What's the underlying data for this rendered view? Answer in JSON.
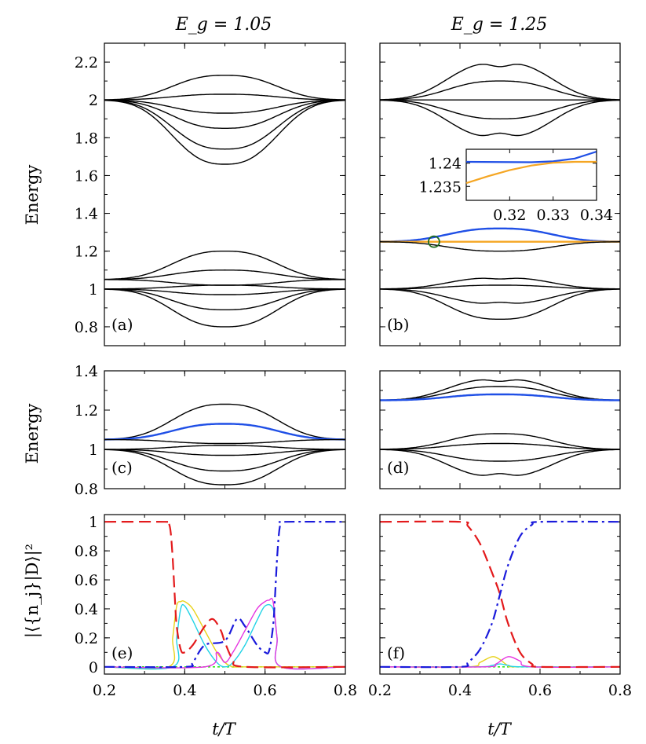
{
  "figure": {
    "col_titles": [
      "E_g = 1.05",
      "E_g = 1.25"
    ],
    "ylabel_energy": "Energy",
    "ylabel_prob": "|⟨{n_j}|D⟩|²",
    "xlabel": "t/T"
  },
  "colors": {
    "blue": "#1f4fe6",
    "orange": "#f5a623",
    "red": "#e31a1c",
    "navy": "#1a1adb",
    "yellow": "#e8d21a",
    "cyan": "#22d3e6",
    "magenta": "#e633e0",
    "green": "#2ee61a",
    "dark_green": "#1e6b1e"
  },
  "chart_data": [
    {
      "id": "a",
      "type": "line",
      "panel_label": "(a)",
      "xlim": [
        0.2,
        0.8
      ],
      "ylim": [
        0.7,
        2.3
      ],
      "xticks": [
        0.2,
        0.4,
        0.6,
        0.8
      ],
      "yticks": [
        0.8,
        1.0,
        1.2,
        1.4,
        1.6,
        1.8,
        2.0,
        2.2
      ],
      "ytick_labels": [
        "0.8",
        "1",
        "1.2",
        "1.4",
        "1.6",
        "1.8",
        "2",
        "2.2"
      ],
      "series": [
        {
          "start": 2,
          "peak": 2.13,
          "color": "black"
        },
        {
          "start": 2,
          "peak": 2.03,
          "color": "black"
        },
        {
          "start": 2,
          "peak": 1.93,
          "color": "black"
        },
        {
          "start": 2,
          "peak": 1.85,
          "color": "black"
        },
        {
          "start": 2,
          "peak": 1.74,
          "color": "black"
        },
        {
          "start": 2,
          "peak": 1.66,
          "color": "black"
        },
        {
          "start": 1.05,
          "peak": 1.2,
          "color": "black"
        },
        {
          "start": 1.05,
          "peak": 1.1,
          "color": "black"
        },
        {
          "start": 1.05,
          "peak": 1.02,
          "color": "black"
        },
        {
          "start": 1,
          "peak": 1.02,
          "color": "black"
        },
        {
          "start": 1,
          "peak": 0.97,
          "color": "black"
        },
        {
          "start": 1,
          "peak": 0.89,
          "color": "black"
        },
        {
          "start": 1,
          "peak": 0.8,
          "color": "black"
        }
      ]
    },
    {
      "id": "b",
      "type": "line",
      "panel_label": "(b)",
      "xlim": [
        0.2,
        0.8
      ],
      "ylim": [
        0.7,
        2.3
      ],
      "xticks": [
        0.2,
        0.4,
        0.6,
        0.8
      ],
      "yticks": [
        0.8,
        1.0,
        1.2,
        1.4,
        1.6,
        1.8,
        2.0,
        2.2
      ],
      "series": [
        {
          "start": 2,
          "peak": 2.2,
          "color": "black"
        },
        {
          "start": 2,
          "peak": 2.1,
          "color": "black"
        },
        {
          "start": 2,
          "peak": 2.0,
          "color": "black"
        },
        {
          "start": 2,
          "peak": 1.9,
          "color": "black"
        },
        {
          "start": 2,
          "peak": 1.8,
          "color": "black"
        },
        {
          "start": 1.25,
          "peak": 1.32,
          "color": "blue"
        },
        {
          "start": 1.25,
          "peak": 1.25,
          "color": "orange"
        },
        {
          "start": 1.25,
          "peak": 1.2,
          "color": "black"
        },
        {
          "start": 1,
          "peak": 1.06,
          "color": "black"
        },
        {
          "start": 1,
          "peak": 1.02,
          "color": "black"
        },
        {
          "start": 1,
          "peak": 0.92,
          "color": "black"
        },
        {
          "start": 1,
          "peak": 0.84,
          "color": "black"
        }
      ],
      "inset": {
        "xlim": [
          0.31,
          0.34
        ],
        "ylim": [
          1.232,
          1.243
        ],
        "xticks": [
          0.32,
          0.33,
          0.34
        ],
        "xtick_labels": [
          "0.32",
          "0.33",
          "0.34"
        ],
        "yticks": [
          1.235,
          1.24
        ],
        "ytick_labels": [
          "1.235",
          "1.24"
        ],
        "blue": {
          "x": [
            0.31,
            0.325,
            0.33,
            0.335,
            0.34
          ],
          "y": [
            1.2403,
            1.2402,
            1.2404,
            1.241,
            1.2425
          ]
        },
        "orange": {
          "x": [
            0.31,
            0.315,
            0.32,
            0.325,
            0.33,
            0.335,
            0.34
          ],
          "y": [
            1.2357,
            1.2372,
            1.2385,
            1.2395,
            1.2401,
            1.2403,
            1.2403
          ]
        }
      },
      "marker": {
        "x": 0.335,
        "y": 1.25
      }
    },
    {
      "id": "c",
      "type": "line",
      "panel_label": "(c)",
      "xlim": [
        0.2,
        0.8
      ],
      "ylim": [
        0.8,
        1.4
      ],
      "yticks": [
        0.8,
        1.0,
        1.2,
        1.4
      ],
      "ytick_labels": [
        "0.8",
        "1",
        "1.2",
        "1.4"
      ],
      "series": [
        {
          "start": 1.05,
          "peak": 1.23,
          "color": "black"
        },
        {
          "start": 1.05,
          "peak": 1.13,
          "color": "blue"
        },
        {
          "start": 1.05,
          "peak": 1.03,
          "color": "black"
        },
        {
          "start": 1,
          "peak": 1.02,
          "color": "black"
        },
        {
          "start": 1,
          "peak": 0.97,
          "color": "black"
        },
        {
          "start": 1,
          "peak": 0.89,
          "color": "black"
        },
        {
          "start": 1,
          "peak": 0.82,
          "color": "black"
        }
      ]
    },
    {
      "id": "d",
      "type": "line",
      "panel_label": "(d)",
      "xlim": [
        0.2,
        0.8
      ],
      "ylim": [
        0.8,
        1.4
      ],
      "series": [
        {
          "start": 1.25,
          "peak": 1.36,
          "color": "black"
        },
        {
          "start": 1.25,
          "peak": 1.32,
          "color": "black"
        },
        {
          "start": 1.25,
          "peak": 1.28,
          "color": "blue"
        },
        {
          "start": 1,
          "peak": 1.08,
          "color": "black"
        },
        {
          "start": 1,
          "peak": 1.03,
          "color": "black"
        },
        {
          "start": 1,
          "peak": 0.94,
          "color": "black"
        },
        {
          "start": 1,
          "peak": 0.86,
          "color": "black"
        }
      ]
    },
    {
      "id": "e",
      "type": "line",
      "panel_label": "(e)",
      "xlim": [
        0.2,
        0.8
      ],
      "ylim": [
        -0.05,
        1.05
      ],
      "xticks": [
        0.2,
        0.4,
        0.6,
        0.8
      ],
      "xtick_labels": [
        "0.2",
        "0.4",
        "0.6",
        "0.8"
      ],
      "yticks": [
        0,
        0.2,
        0.4,
        0.6,
        0.8,
        1
      ],
      "ytick_labels": [
        "0",
        "0.2",
        "0.4",
        "0.6",
        "0.8",
        "1"
      ],
      "series": [
        {
          "name": "red",
          "x": [
            0.2,
            0.35,
            0.36,
            0.365,
            0.37,
            0.375,
            0.38,
            0.39,
            0.4,
            0.42,
            0.45,
            0.47,
            0.49,
            0.5,
            0.52,
            0.55,
            0.8
          ],
          "y": [
            1,
            1,
            0.99,
            0.93,
            0.75,
            0.5,
            0.28,
            0.12,
            0.1,
            0.15,
            0.28,
            0.33,
            0.25,
            0.17,
            0.05,
            0,
            0
          ]
        },
        {
          "name": "navy",
          "x": [
            0.2,
            0.4,
            0.42,
            0.45,
            0.5,
            0.53,
            0.55,
            0.58,
            0.6,
            0.61,
            0.62,
            0.625,
            0.63,
            0.635,
            0.64,
            0.65,
            0.8
          ],
          "y": [
            0,
            0,
            0.03,
            0.15,
            0.18,
            0.33,
            0.28,
            0.15,
            0.1,
            0.11,
            0.28,
            0.5,
            0.75,
            0.93,
            0.99,
            1,
            1
          ]
        },
        {
          "name": "yellow",
          "x": [
            0.2,
            0.36,
            0.37,
            0.38,
            0.39,
            0.4,
            0.42,
            0.45,
            0.48,
            0.5,
            0.52,
            0.55,
            0.8
          ],
          "y": [
            0,
            0,
            0.2,
            0.42,
            0.45,
            0.45,
            0.4,
            0.25,
            0.1,
            0.03,
            0,
            0,
            0
          ]
        },
        {
          "name": "cyan",
          "x": [
            0.2,
            0.37,
            0.38,
            0.39,
            0.4,
            0.42,
            0.45,
            0.48,
            0.5,
            0.52,
            0.55,
            0.58,
            0.6,
            0.62,
            0.63,
            0.64,
            0.8
          ],
          "y": [
            0,
            0,
            0.2,
            0.4,
            0.42,
            0.32,
            0.15,
            0.03,
            0,
            0.03,
            0.15,
            0.32,
            0.42,
            0.4,
            0.2,
            0,
            0
          ]
        },
        {
          "name": "magenta",
          "x": [
            0.2,
            0.45,
            0.48,
            0.5,
            0.52,
            0.55,
            0.58,
            0.6,
            0.61,
            0.62,
            0.63,
            0.64,
            0.8
          ],
          "y": [
            0,
            0,
            0.1,
            0.03,
            0.1,
            0.25,
            0.4,
            0.45,
            0.46,
            0.45,
            0.2,
            0,
            0
          ]
        },
        {
          "name": "green",
          "x": [
            0.2,
            0.8
          ],
          "y": [
            0,
            0
          ]
        }
      ]
    },
    {
      "id": "f",
      "type": "line",
      "panel_label": "(f)",
      "xlim": [
        0.2,
        0.8
      ],
      "ylim": [
        -0.05,
        1.05
      ],
      "xticks": [
        0.2,
        0.4,
        0.6,
        0.8
      ],
      "xtick_labels": [
        "0.2",
        "0.4",
        "0.6",
        "0.8"
      ],
      "series": [
        {
          "name": "red",
          "x": [
            0.2,
            0.4,
            0.42,
            0.45,
            0.48,
            0.5,
            0.52,
            0.55,
            0.58,
            0.6,
            0.8
          ],
          "y": [
            1,
            1,
            0.97,
            0.85,
            0.65,
            0.5,
            0.3,
            0.1,
            0.02,
            0,
            0
          ]
        },
        {
          "name": "navy",
          "x": [
            0.2,
            0.4,
            0.42,
            0.45,
            0.48,
            0.5,
            0.52,
            0.55,
            0.58,
            0.6,
            0.8
          ],
          "y": [
            0,
            0,
            0.03,
            0.12,
            0.3,
            0.5,
            0.7,
            0.9,
            0.98,
            1,
            1
          ]
        },
        {
          "name": "yellow",
          "x": [
            0.2,
            0.42,
            0.45,
            0.48,
            0.5,
            0.52,
            0.55,
            0.8
          ],
          "y": [
            0,
            0,
            0.03,
            0.07,
            0.05,
            0.01,
            0,
            0
          ]
        },
        {
          "name": "magenta",
          "x": [
            0.2,
            0.46,
            0.49,
            0.52,
            0.55,
            0.58,
            0.8
          ],
          "y": [
            0,
            0,
            0.02,
            0.07,
            0.04,
            0,
            0
          ]
        },
        {
          "name": "cyan",
          "x": [
            0.2,
            0.44,
            0.48,
            0.5,
            0.52,
            0.56,
            0.8
          ],
          "y": [
            0,
            0,
            0.01,
            0.02,
            0.01,
            0,
            0
          ]
        },
        {
          "name": "green",
          "x": [
            0.2,
            0.8
          ],
          "y": [
            0,
            0
          ]
        }
      ]
    }
  ]
}
